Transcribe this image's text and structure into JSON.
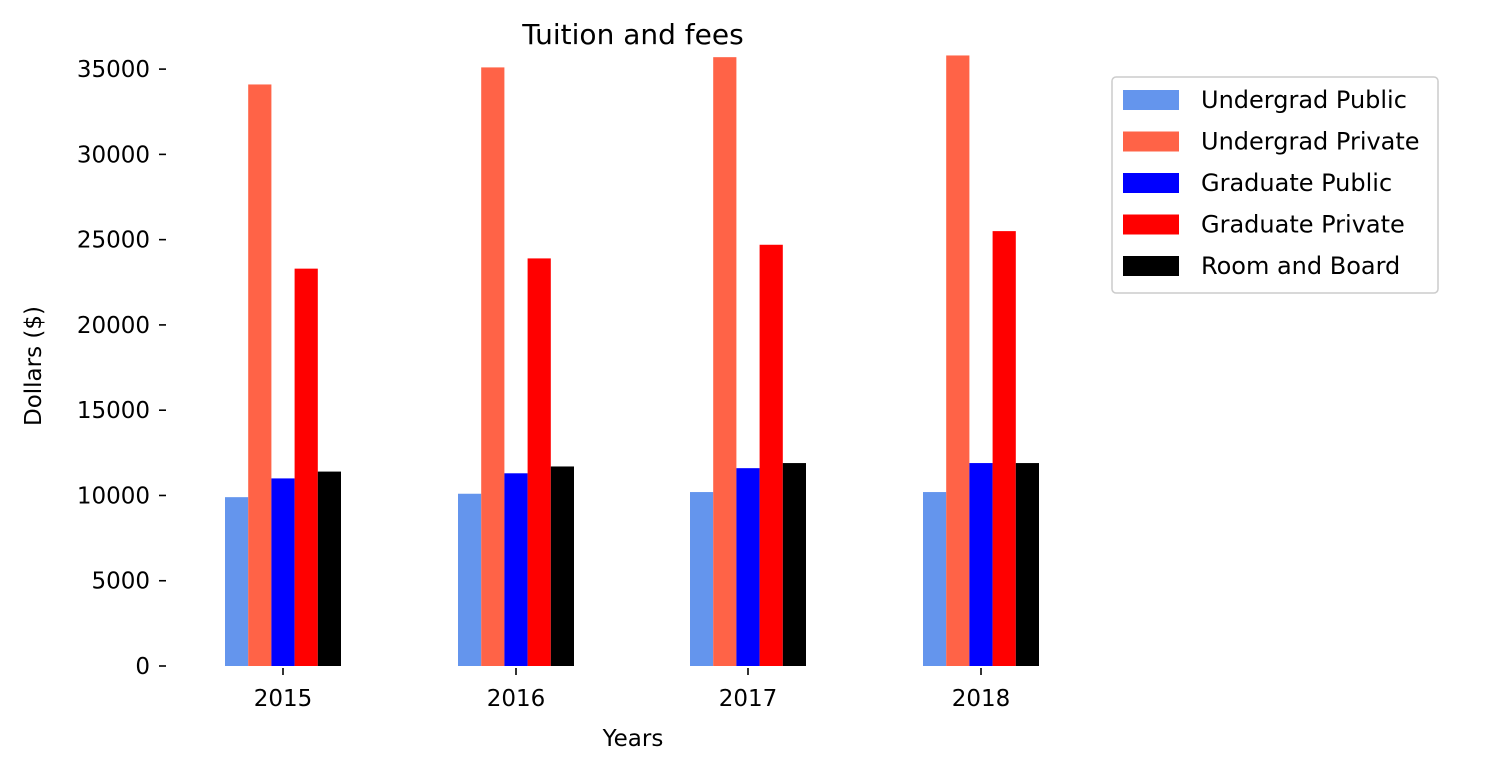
{
  "chart_data": {
    "type": "bar",
    "title": "Tuition and fees",
    "xlabel": "Years",
    "ylabel": "Dollars ($)",
    "categories": [
      "2015",
      "2016",
      "2017",
      "2018"
    ],
    "ylim": [
      0,
      37000
    ],
    "yticks": [
      0,
      5000,
      10000,
      15000,
      20000,
      25000,
      30000,
      35000
    ],
    "grid": false,
    "legend_position": "outside-top-right",
    "series": [
      {
        "name": "Undergrad Public",
        "color": "#6495ED",
        "values": [
          9900,
          10100,
          10200,
          10200
        ]
      },
      {
        "name": "Undergrad Private",
        "color": "#FF6347",
        "values": [
          34100,
          35100,
          35700,
          35800
        ]
      },
      {
        "name": "Graduate Public",
        "color": "#0000FF",
        "values": [
          11000,
          11300,
          11600,
          11900
        ]
      },
      {
        "name": "Graduate Private",
        "color": "#FF0000",
        "values": [
          23300,
          23900,
          24700,
          25500
        ]
      },
      {
        "name": "Room and Board",
        "color": "#000000",
        "values": [
          11400,
          11700,
          11900,
          11900
        ]
      }
    ]
  }
}
